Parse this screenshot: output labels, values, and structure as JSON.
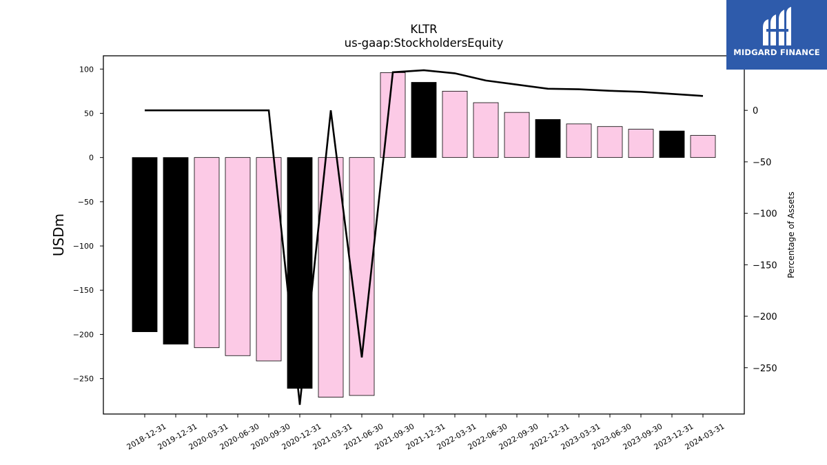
{
  "chart_data": {
    "type": "bar",
    "title": "KLTR",
    "subtitle": "us-gaap:StockholdersEquity",
    "ylabel": "USDm",
    "y2label": "Percentage of Assets",
    "ylim": [
      -290,
      115
    ],
    "y2lim": [
      -295,
      53
    ],
    "yticks": [
      100,
      50,
      0,
      -50,
      -100,
      -150,
      -200,
      -250
    ],
    "y2ticks": [
      0,
      -50,
      -100,
      -150,
      -200,
      -250
    ],
    "categories": [
      "2018-12-31",
      "2019-12-31",
      "2020-03-31",
      "2020-06-30",
      "2020-09-30",
      "2020-12-31",
      "2021-03-31",
      "2021-06-30",
      "2021-09-30",
      "2021-12-31",
      "2022-03-31",
      "2022-06-30",
      "2022-09-30",
      "2022-12-31",
      "2023-03-31",
      "2023-06-30",
      "2023-09-30",
      "2023-12-31",
      "2024-03-31"
    ],
    "series": [
      {
        "kind": "bar",
        "axis": "left",
        "values": [
          -197,
          -211,
          -215,
          -224,
          -230,
          -261,
          -271,
          -269,
          96,
          85,
          75,
          62,
          51,
          43,
          38,
          35,
          32,
          30,
          25
        ],
        "colors": [
          "#000000",
          "#000000",
          "#fccae6",
          "#fccae6",
          "#fccae6",
          "#000000",
          "#fccae6",
          "#fccae6",
          "#fccae6",
          "#000000",
          "#fccae6",
          "#fccae6",
          "#fccae6",
          "#000000",
          "#fccae6",
          "#fccae6",
          "#fccae6",
          "#000000",
          "#fccae6"
        ]
      },
      {
        "kind": "line",
        "axis": "right",
        "color": "#000000",
        "values": [
          0,
          0,
          0,
          0,
          0,
          -286,
          0,
          -240,
          37,
          39,
          36,
          29,
          25,
          21,
          20.5,
          19,
          18,
          16,
          14
        ]
      }
    ],
    "grid": false,
    "legend": "none"
  },
  "logo": {
    "text": "MIDGARD FINANCE",
    "bg": "#2e5bab",
    "icon": "midgard-logo-icon"
  }
}
